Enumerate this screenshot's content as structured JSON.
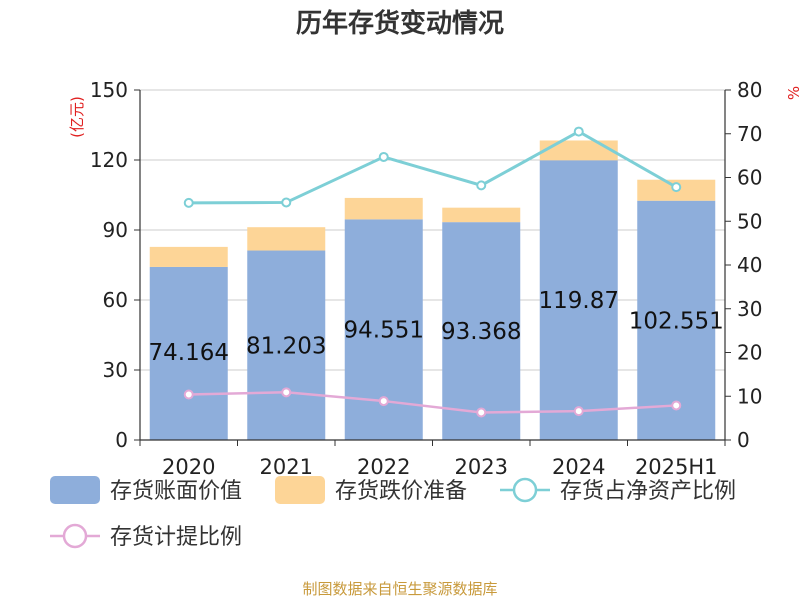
{
  "chart_data": {
    "type": "bar",
    "title": "历年存货变动情况",
    "categories": [
      "2020",
      "2021",
      "2022",
      "2023",
      "2024",
      "2025H1"
    ],
    "left_axis": {
      "unit_label": "(亿元)",
      "range": [
        0,
        150
      ],
      "ticks": [
        "0",
        "30",
        "60",
        "90",
        "120",
        "150"
      ]
    },
    "right_axis": {
      "unit_label": "%",
      "range": [
        0,
        80
      ],
      "ticks": [
        "0",
        "10",
        "20",
        "30",
        "40",
        "50",
        "60",
        "70",
        "80"
      ]
    },
    "grid": true,
    "series": [
      {
        "name": "存货账面价值",
        "kind": "stacked-bar",
        "axis": "left",
        "color": "#8eaedb",
        "values": [
          74.164,
          81.203,
          94.551,
          93.368,
          119.87,
          102.551
        ],
        "labels": [
          "74.164",
          "81.203",
          "94.551",
          "93.368",
          "119.87",
          "102.551"
        ]
      },
      {
        "name": "存货跌价准备",
        "kind": "stacked-bar",
        "axis": "left",
        "color": "#fdd597",
        "values": [
          8.6,
          10.0,
          9.2,
          6.2,
          8.5,
          9.0
        ]
      },
      {
        "name": "存货占净资产比例",
        "kind": "line",
        "axis": "right",
        "color": "#7dcfd6",
        "values": [
          54.2,
          54.3,
          64.7,
          58.2,
          70.5,
          57.8
        ]
      },
      {
        "name": "存货计提比例",
        "kind": "line",
        "axis": "right",
        "color": "#e3a9d6",
        "values": [
          10.4,
          10.9,
          8.9,
          6.3,
          6.6,
          7.9
        ]
      }
    ],
    "legend_position": "bottom"
  },
  "source": "制图数据来自恒生聚源数据库"
}
